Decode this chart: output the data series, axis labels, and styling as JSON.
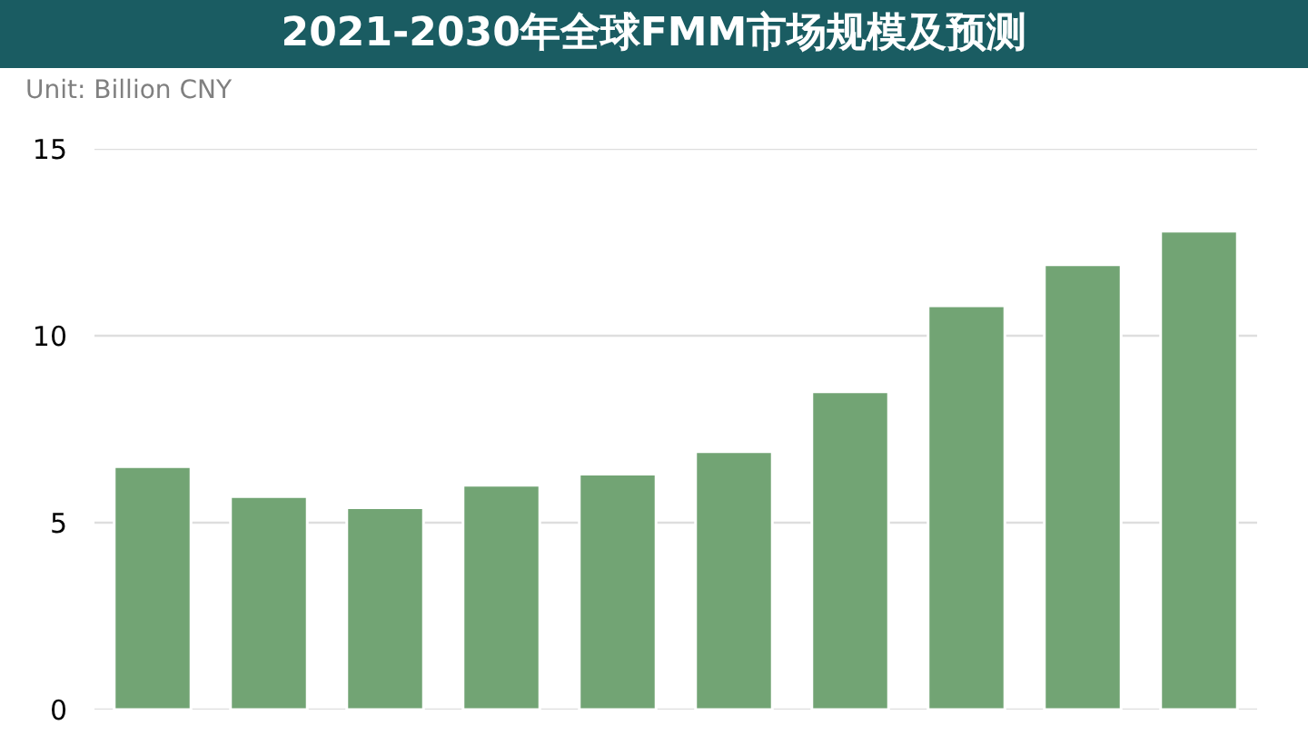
{
  "chart_data": {
    "type": "bar",
    "title": "2021-2030年全球FMM市场规模及预测",
    "ylabel": "Unit: Billion CNY",
    "categories": [
      null,
      null,
      null,
      null,
      null,
      null,
      null,
      null,
      null,
      null
    ],
    "values": [
      6.5,
      5.7,
      5.4,
      6.0,
      6.3,
      6.9,
      8.5,
      10.8,
      11.9,
      12.8
    ],
    "color": "#72a474",
    "ylim": [
      0,
      15
    ],
    "yticks": [
      0,
      5,
      10,
      15
    ],
    "grid": "y",
    "tick_labels": "y"
  }
}
